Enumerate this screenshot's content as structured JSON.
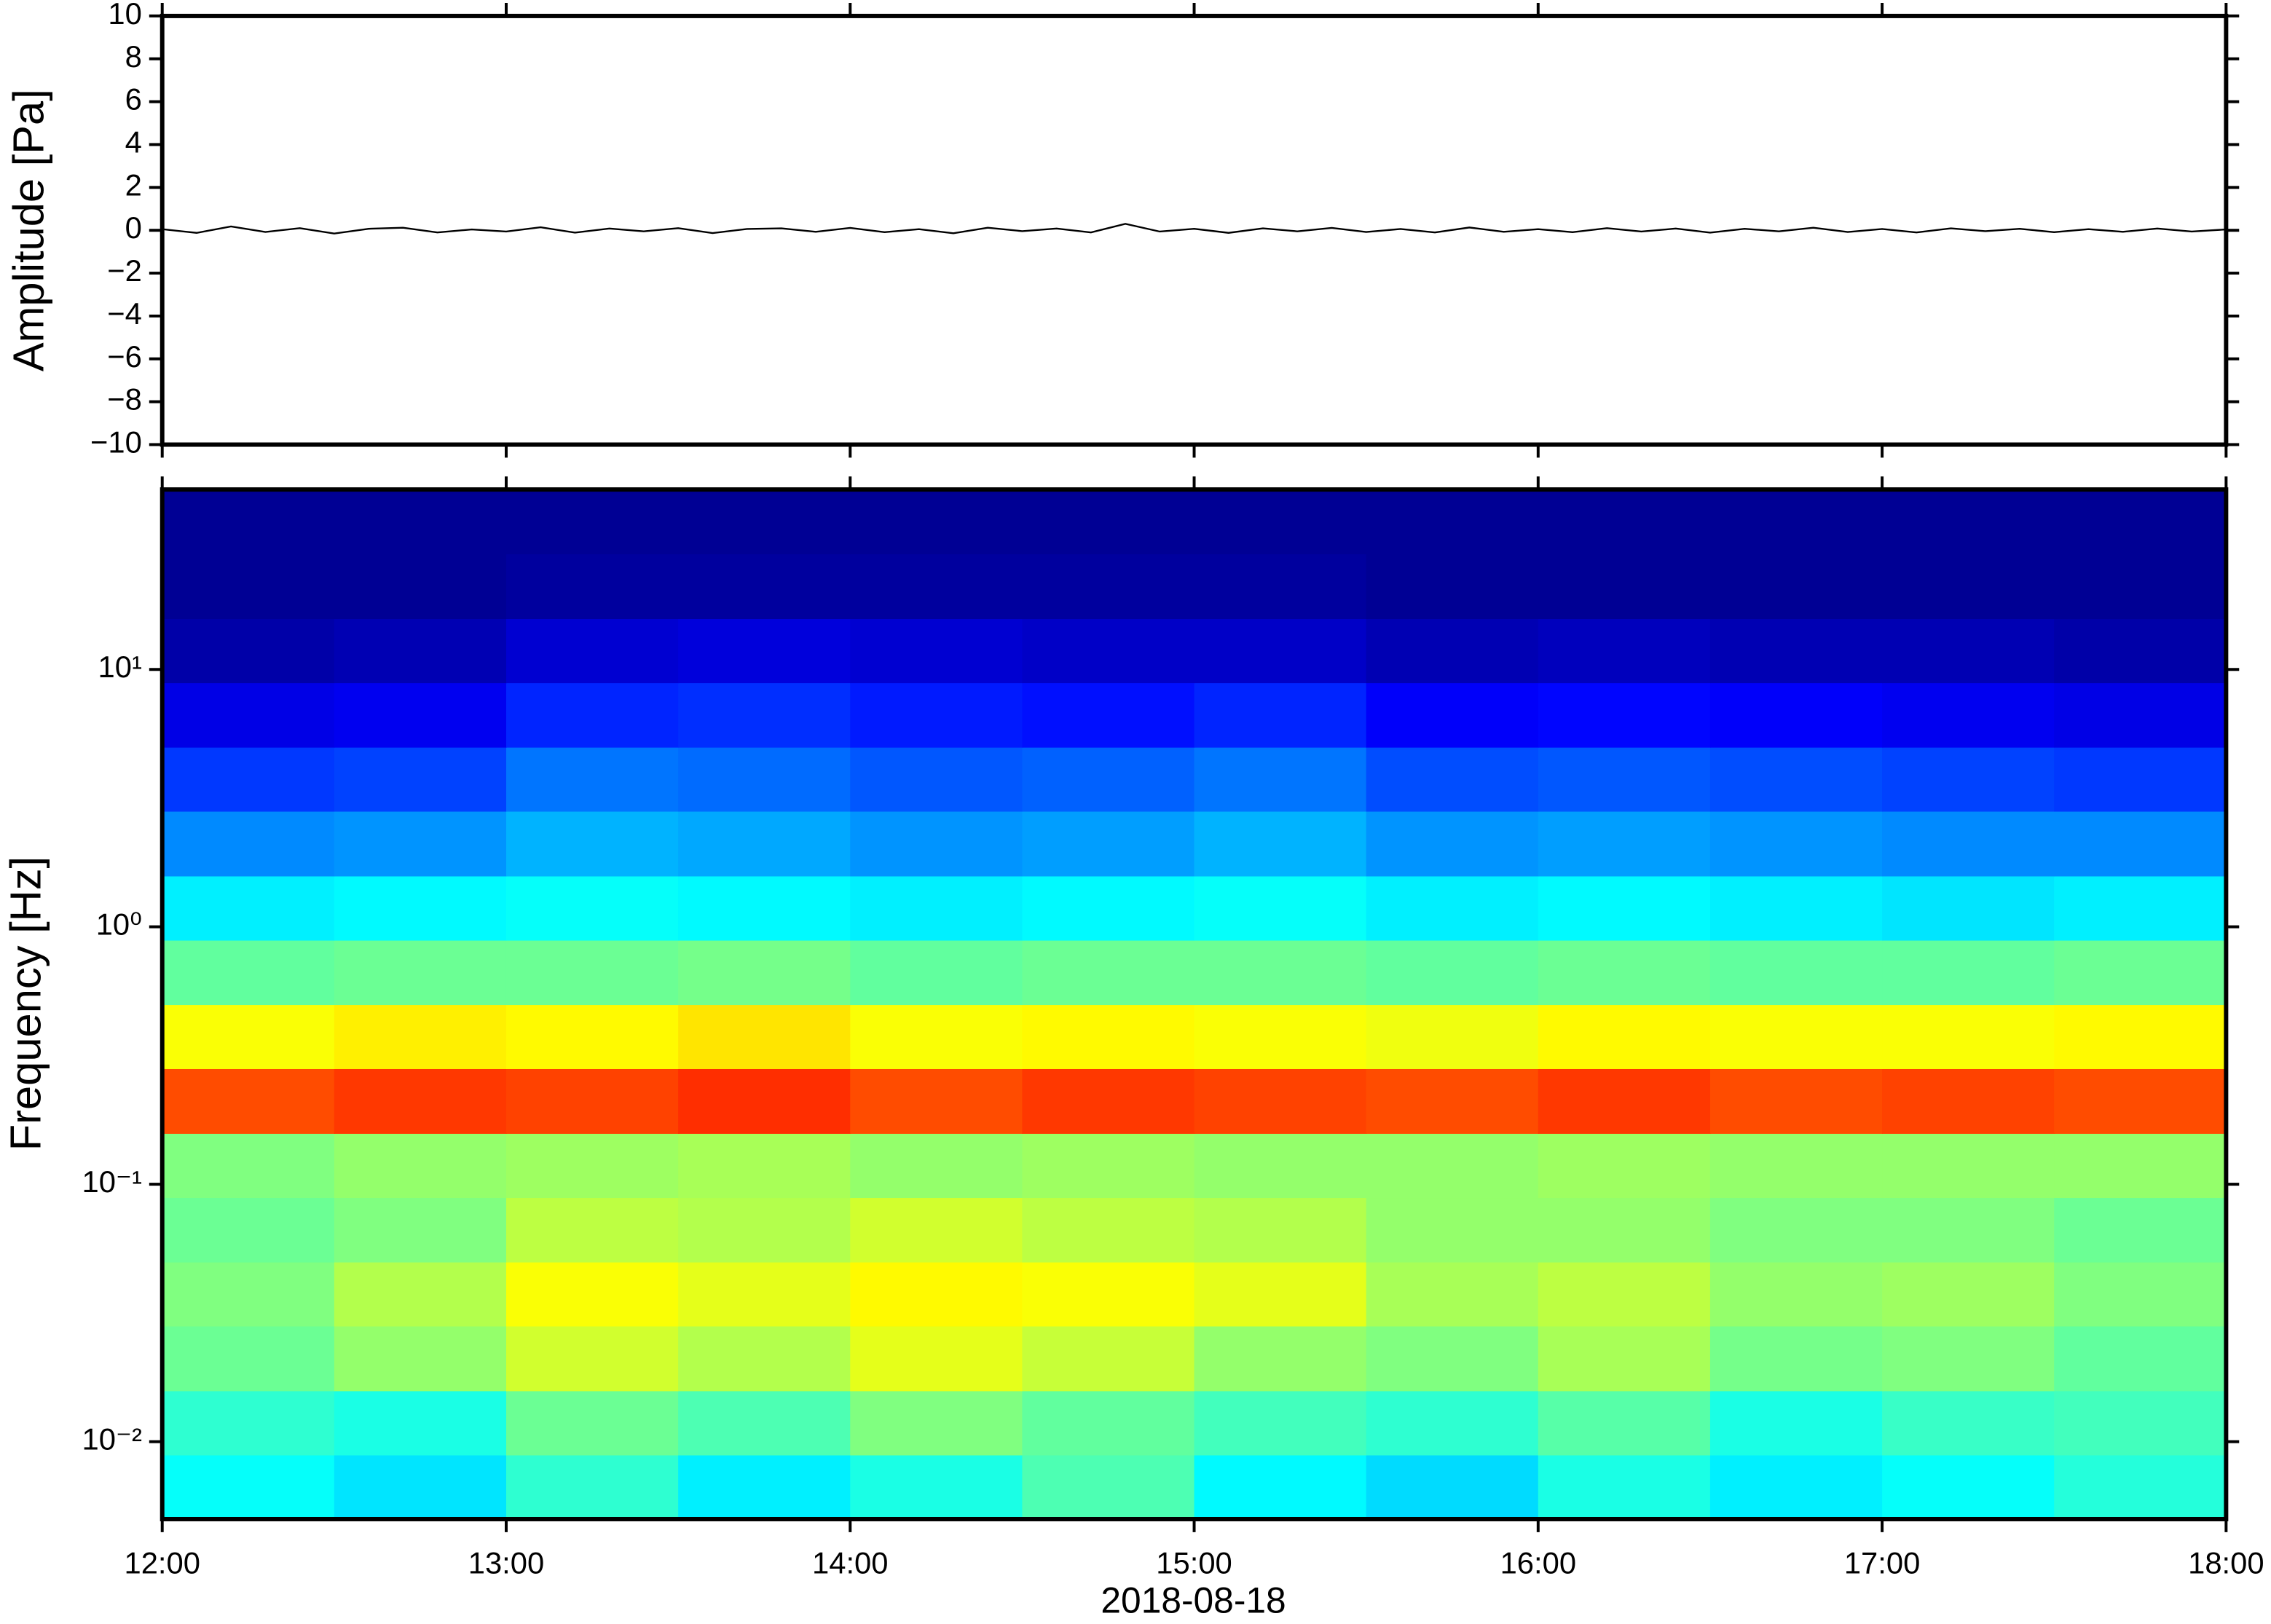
{
  "chart_data": [
    {
      "type": "line",
      "ylabel": "Amplitude [Pa]",
      "xlim": [
        12,
        18
      ],
      "ylim": [
        -10,
        10
      ],
      "yticks": [
        {
          "value": -10,
          "label": "−10"
        },
        {
          "value": -8,
          "label": "−8"
        },
        {
          "value": -6,
          "label": "−6"
        },
        {
          "value": -4,
          "label": "−4"
        },
        {
          "value": -2,
          "label": "−2"
        },
        0,
        2,
        4,
        6,
        8,
        10
      ],
      "x": [
        12,
        12.1,
        12.2,
        12.3,
        12.4,
        12.5,
        12.6,
        12.7,
        12.8,
        12.9,
        13,
        13.1,
        13.2,
        13.3,
        13.4,
        13.5,
        13.6,
        13.7,
        13.8,
        13.9,
        14,
        14.1,
        14.2,
        14.3,
        14.4,
        14.5,
        14.6,
        14.7,
        14.8,
        14.9,
        15,
        15.1,
        15.2,
        15.3,
        15.4,
        15.5,
        15.6,
        15.7,
        15.8,
        15.9,
        16,
        16.1,
        16.2,
        16.3,
        16.4,
        16.5,
        16.6,
        16.7,
        16.8,
        16.9,
        17,
        17.1,
        17.2,
        17.3,
        17.4,
        17.5,
        17.6,
        17.7,
        17.8,
        17.9,
        18
      ],
      "series": [
        {
          "color": "#000000",
          "values": [
            0.05,
            -0.12,
            0.18,
            -0.08,
            0.1,
            -0.15,
            0.07,
            0.12,
            -0.1,
            0.04,
            -0.06,
            0.14,
            -0.11,
            0.08,
            -0.05,
            0.1,
            -0.13,
            0.06,
            0.09,
            -0.07,
            0.11,
            -0.09,
            0.05,
            -0.14,
            0.12,
            -0.04,
            0.08,
            -0.1,
            0.3,
            -0.06,
            0.07,
            -0.12,
            0.09,
            -0.05,
            0.11,
            -0.08,
            0.06,
            -0.1,
            0.13,
            -0.07,
            0.05,
            -0.09,
            0.1,
            -0.06,
            0.08,
            -0.11,
            0.07,
            -0.05,
            0.12,
            -0.08,
            0.06,
            -0.1,
            0.09,
            -0.04,
            0.07,
            -0.09,
            0.05,
            -0.07,
            0.08,
            -0.06,
            0.04
          ]
        }
      ]
    },
    {
      "type": "heatmap",
      "ylabel": "Frequency [Hz]",
      "xlabel": "2018-08-18",
      "colormap": "jet",
      "yscale": "log",
      "xlim": [
        12,
        18
      ],
      "ylim": [
        0.005,
        50
      ],
      "xticks": [
        {
          "value": 12,
          "label": "12:00"
        },
        {
          "value": 13,
          "label": "13:00"
        },
        {
          "value": 14,
          "label": "14:00"
        },
        {
          "value": 15,
          "label": "15:00"
        },
        {
          "value": 16,
          "label": "16:00"
        },
        {
          "value": 17,
          "label": "17:00"
        },
        {
          "value": 18,
          "label": "18:00"
        }
      ],
      "yticks": [
        {
          "value": 0.01,
          "label": "10⁻²"
        },
        {
          "value": 0.1,
          "label": "10⁻¹"
        },
        {
          "value": 1,
          "label": "10⁰"
        },
        {
          "value": 10,
          "label": "10¹"
        }
      ],
      "x_edges": [
        12,
        12.5,
        13,
        13.5,
        14,
        14.5,
        15,
        15.5,
        16,
        16.5,
        17,
        17.5,
        18
      ],
      "y_edges": [
        0.005,
        0.0089,
        0.0158,
        0.0282,
        0.05,
        0.089,
        0.158,
        0.282,
        0.5,
        0.89,
        1.58,
        2.82,
        5,
        8.9,
        15.8,
        28.2,
        50
      ],
      "z": [
        [
          0.38,
          0.35,
          0.42,
          0.36,
          0.4,
          0.45,
          0.37,
          0.34,
          0.4,
          0.36,
          0.38,
          0.41
        ],
        [
          0.42,
          0.4,
          0.48,
          0.45,
          0.5,
          0.47,
          0.44,
          0.42,
          0.46,
          0.4,
          0.43,
          0.44
        ],
        [
          0.48,
          0.52,
          0.58,
          0.55,
          0.6,
          0.57,
          0.52,
          0.5,
          0.54,
          0.49,
          0.5,
          0.47
        ],
        [
          0.5,
          0.55,
          0.62,
          0.6,
          0.63,
          0.62,
          0.6,
          0.54,
          0.56,
          0.52,
          0.53,
          0.5
        ],
        [
          0.48,
          0.5,
          0.56,
          0.55,
          0.58,
          0.56,
          0.55,
          0.52,
          0.52,
          0.5,
          0.5,
          0.48
        ],
        [
          0.5,
          0.52,
          0.53,
          0.54,
          0.52,
          0.53,
          0.52,
          0.52,
          0.53,
          0.52,
          0.52,
          0.52
        ],
        [
          0.8,
          0.82,
          0.81,
          0.83,
          0.8,
          0.82,
          0.81,
          0.8,
          0.82,
          0.8,
          0.81,
          0.8
        ],
        [
          0.62,
          0.64,
          0.63,
          0.65,
          0.62,
          0.63,
          0.62,
          0.61,
          0.63,
          0.62,
          0.62,
          0.63
        ],
        [
          0.47,
          0.48,
          0.48,
          0.49,
          0.47,
          0.48,
          0.48,
          0.47,
          0.48,
          0.47,
          0.47,
          0.48
        ],
        [
          0.36,
          0.37,
          0.38,
          0.37,
          0.36,
          0.37,
          0.38,
          0.36,
          0.37,
          0.36,
          0.35,
          0.36
        ],
        [
          0.26,
          0.27,
          0.3,
          0.29,
          0.27,
          0.28,
          0.3,
          0.27,
          0.28,
          0.27,
          0.26,
          0.26
        ],
        [
          0.18,
          0.19,
          0.24,
          0.23,
          0.21,
          0.22,
          0.24,
          0.2,
          0.21,
          0.2,
          0.19,
          0.18
        ],
        [
          0.1,
          0.11,
          0.16,
          0.17,
          0.15,
          0.14,
          0.16,
          0.12,
          0.13,
          0.12,
          0.11,
          0.1
        ],
        [
          0.04,
          0.05,
          0.08,
          0.09,
          0.08,
          0.07,
          0.07,
          0.05,
          0.06,
          0.05,
          0.05,
          0.04
        ],
        [
          0.02,
          0.02,
          0.03,
          0.03,
          0.03,
          0.03,
          0.03,
          0.02,
          0.02,
          0.02,
          0.02,
          0.02
        ],
        [
          0.02,
          0.02,
          0.02,
          0.02,
          0.02,
          0.02,
          0.02,
          0.02,
          0.02,
          0.02,
          0.02,
          0.02
        ]
      ]
    }
  ]
}
